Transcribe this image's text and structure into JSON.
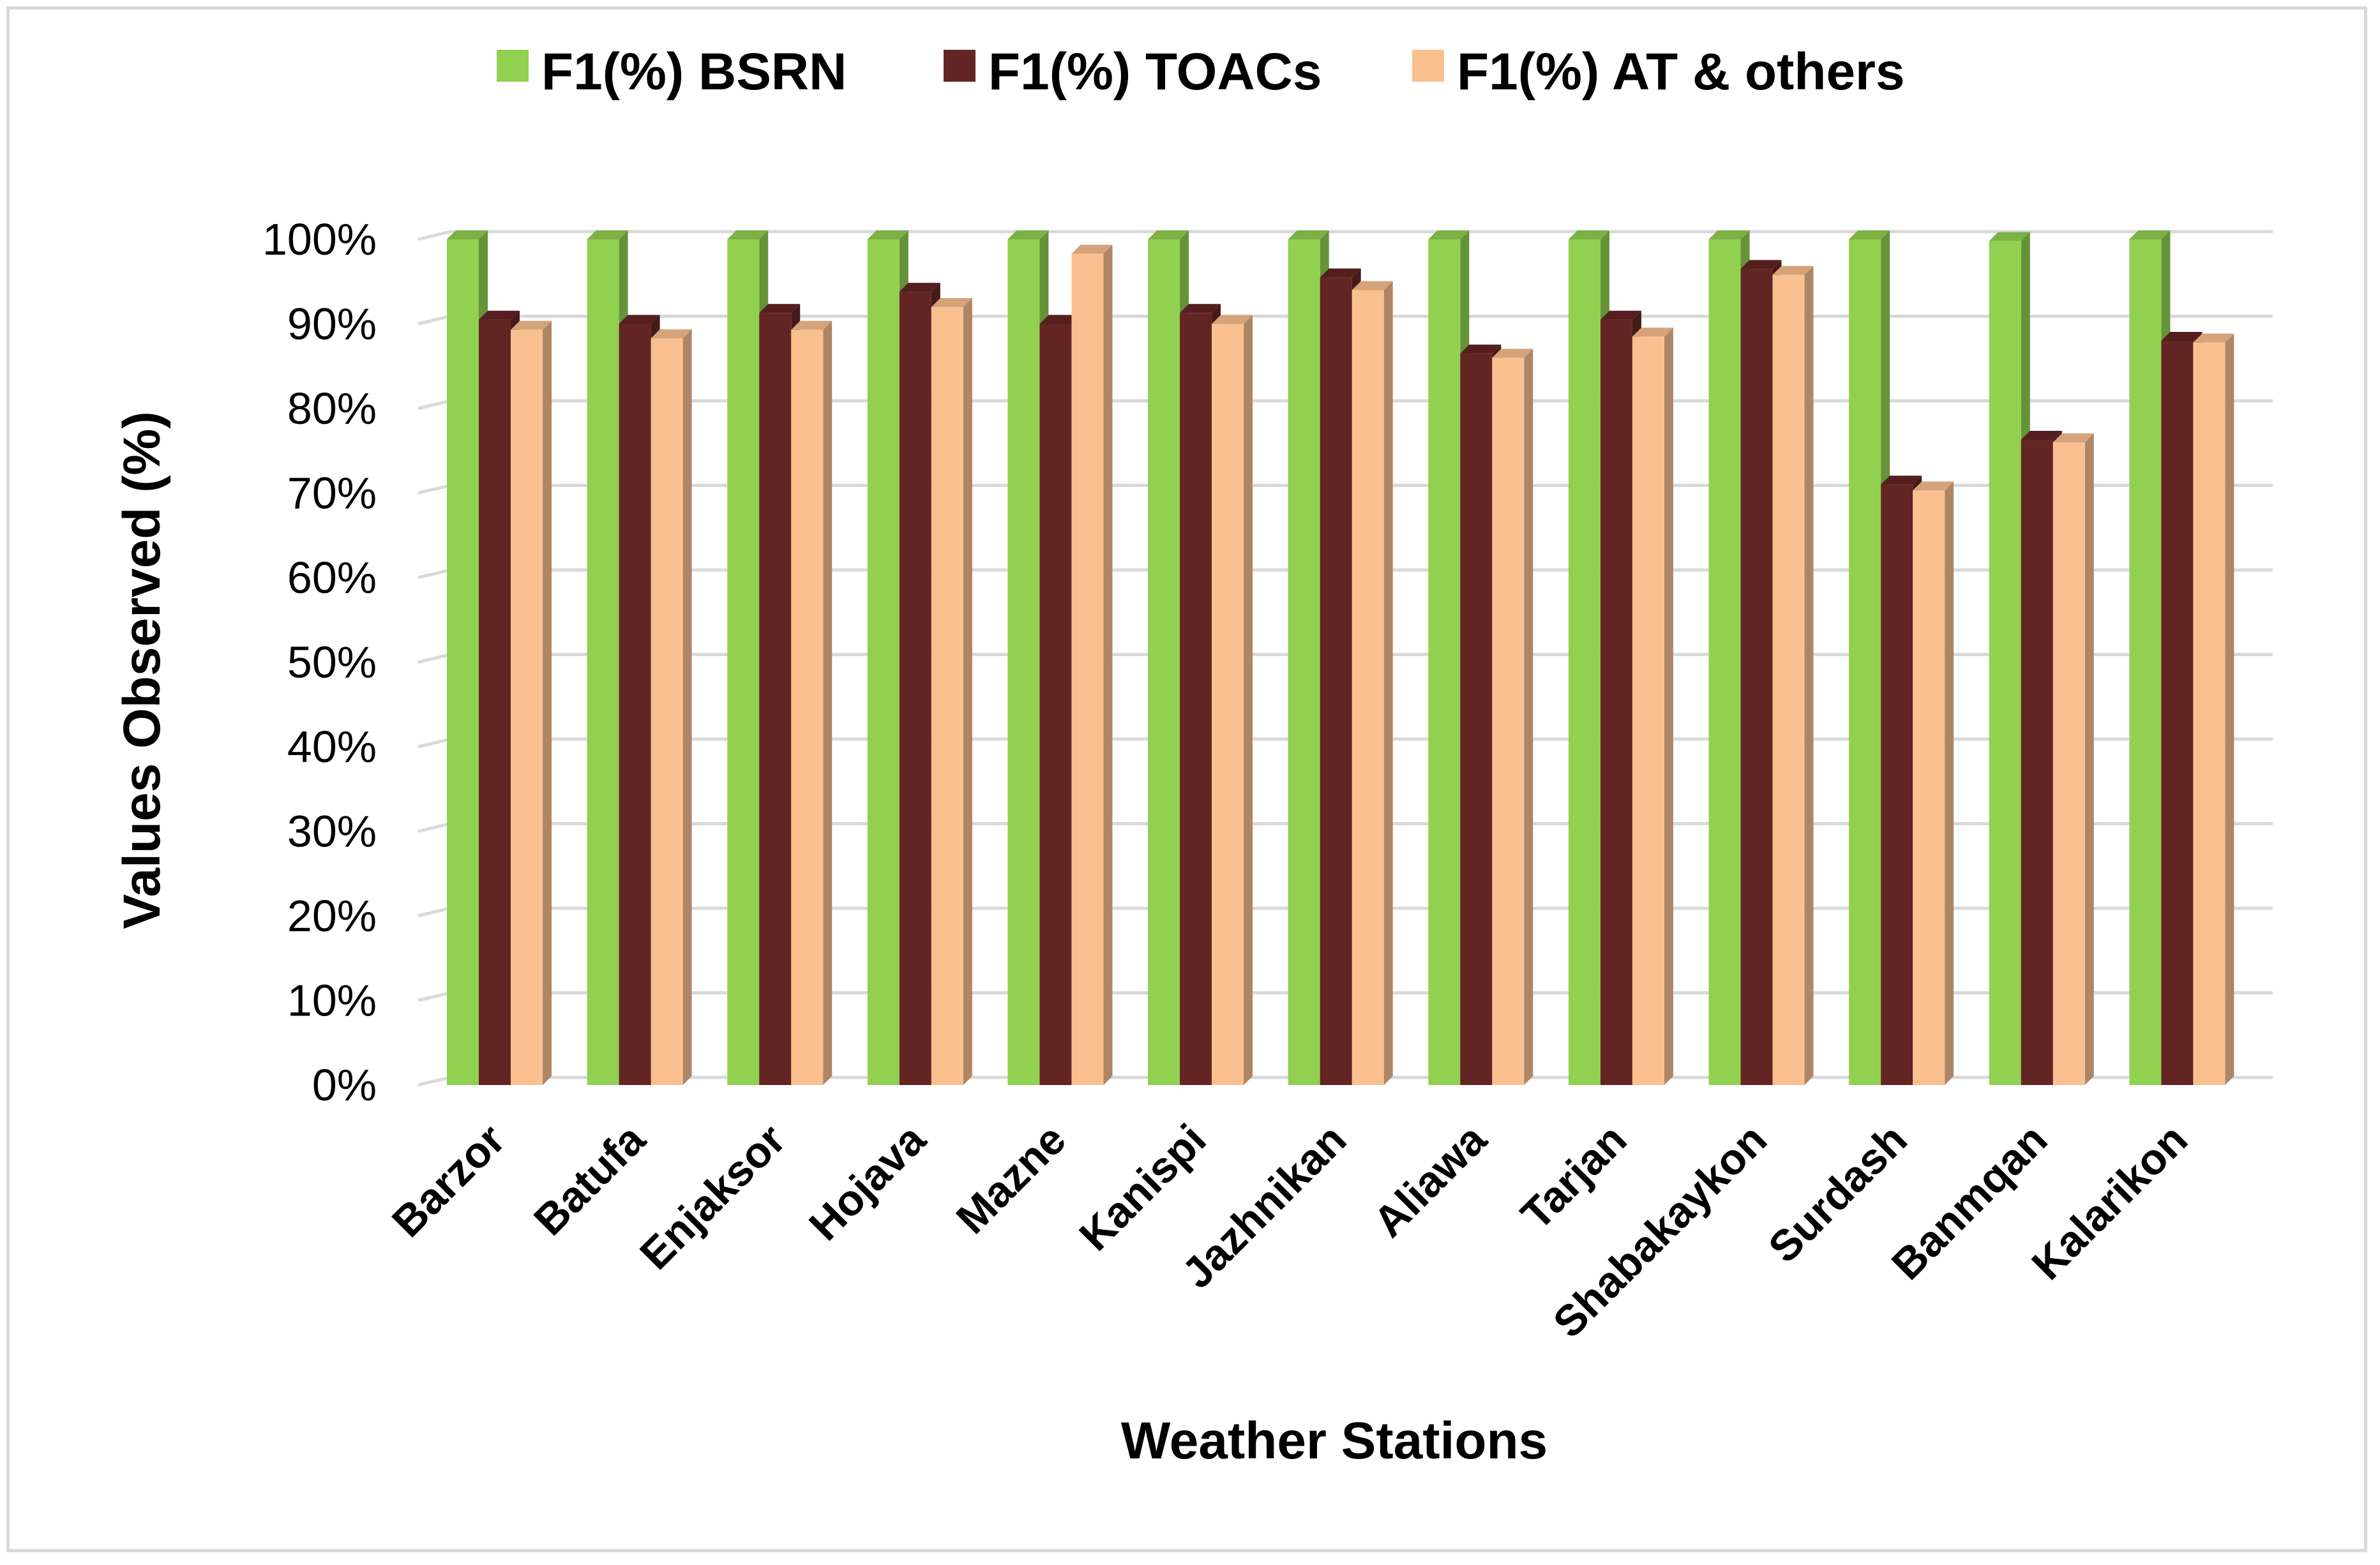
{
  "chart_data": {
    "type": "bar",
    "style": "3d-clustered-column",
    "title": "",
    "xlabel": "Weather Stations",
    "ylabel": "Values Observed (%)",
    "ylim": [
      0,
      100
    ],
    "y_ticks": [
      "0%",
      "10%",
      "20%",
      "30%",
      "40%",
      "50%",
      "60%",
      "70%",
      "80%",
      "90%",
      "100%"
    ],
    "grid": true,
    "legend_position": "top",
    "categories": [
      "Barzor",
      "Batufa",
      "Enjaksor",
      "Hojava",
      "Mazne",
      "Kanispi",
      "Jazhnikan",
      "Aliawa",
      "Tarjan",
      "Shabakaykon",
      "Surdash",
      "Banmqan",
      "Kalarikon"
    ],
    "series": [
      {
        "name": "F1(%) BSRN",
        "color": "#92d050",
        "values": [
          100,
          100,
          100,
          100,
          100,
          100,
          100,
          100,
          100,
          100,
          100,
          99.8,
          100
        ]
      },
      {
        "name": "F1(%) TOACs",
        "color": "#632523",
        "values": [
          90.5,
          90,
          91.3,
          93.8,
          90,
          91.3,
          95.5,
          86.5,
          90.5,
          96.5,
          71,
          76.3,
          88
        ]
      },
      {
        "name": "F1(%) AT & others",
        "color": "#fac090",
        "values": [
          89.3,
          88.3,
          89.3,
          92,
          98.3,
          90,
          94,
          86,
          88.5,
          95.8,
          70.3,
          76,
          87.8
        ]
      }
    ]
  }
}
